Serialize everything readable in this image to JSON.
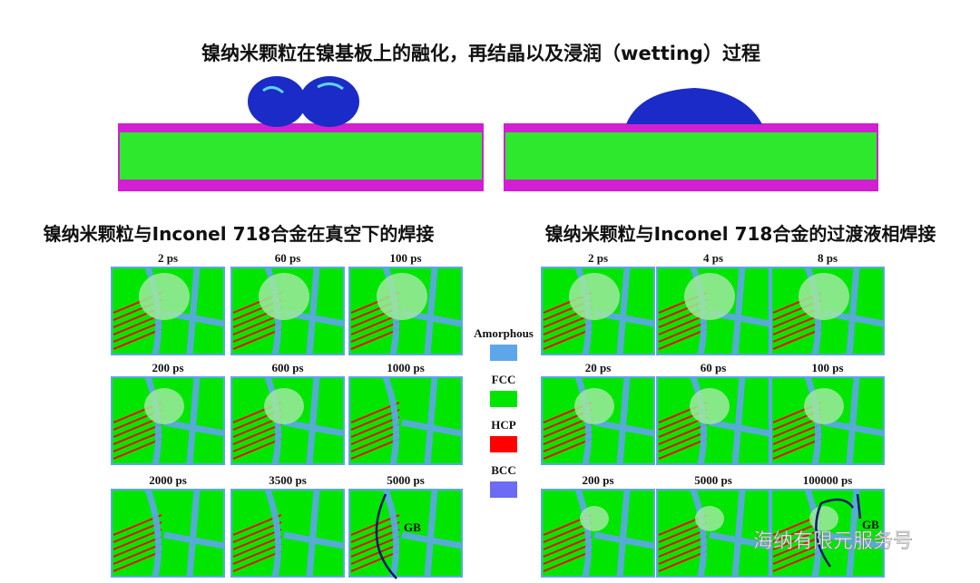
{
  "title": "镍纳米颗粒在镍基板上的融化，再结晶以及浸润（wetting）过程",
  "left": {
    "title": "镍纳米颗粒与Inconel 718合金在真空下的焊接",
    "frames": [
      "2 ps",
      "60 ps",
      "100 ps",
      "200 ps",
      "600 ps",
      "1000 ps",
      "2000 ps",
      "3500 ps",
      "5000 ps"
    ],
    "annotation": "GB"
  },
  "right": {
    "title": "镍纳米颗粒与Inconel 718合金的过渡液相焊接",
    "frames": [
      "2 ps",
      "4 ps",
      "8 ps",
      "20 ps",
      "60 ps",
      "100 ps",
      "200 ps",
      "5000 ps",
      "100000 ps"
    ],
    "annotation": "GB"
  },
  "legend": [
    {
      "label": "Amorphous",
      "color": "#5ea6ea"
    },
    {
      "label": "FCC",
      "color": "#00e600"
    },
    {
      "label": "HCP",
      "color": "#ff0000"
    },
    {
      "label": "BCC",
      "color": "#6b6bf5"
    }
  ],
  "watermark": "海纳有限元服务号"
}
